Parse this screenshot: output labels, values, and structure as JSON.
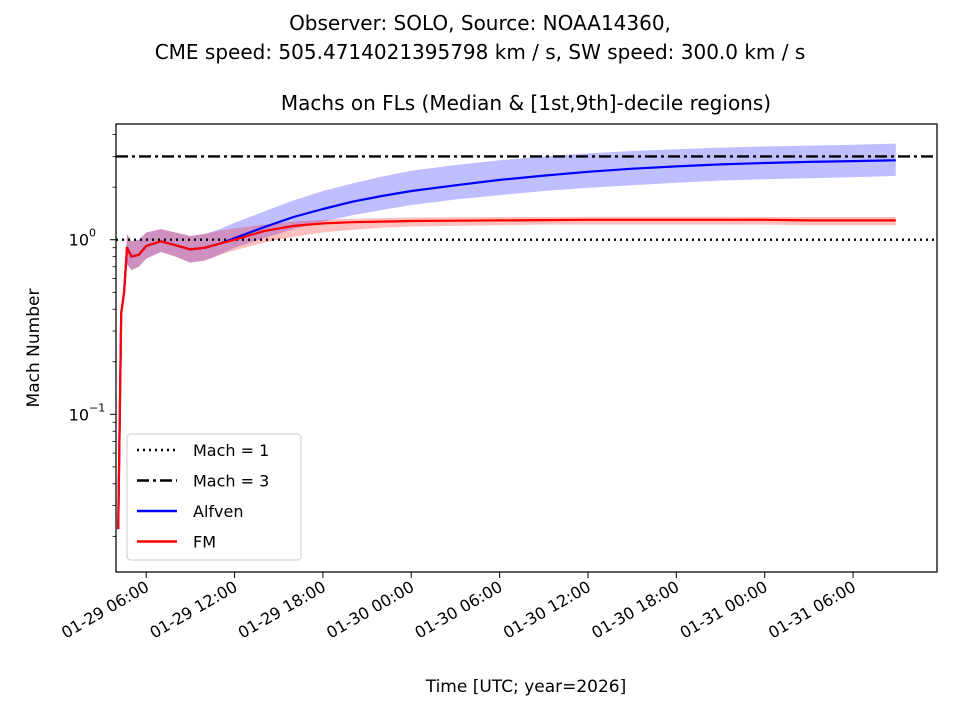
{
  "figure": {
    "suptitle_line1": "Observer: SOLO, Source: NOAA14360,",
    "suptitle_line2": "CME speed: 505.4714021395798 km / s, SW speed: 300.0 km / s"
  },
  "chart_data": {
    "type": "line",
    "title": "Machs on FLs (Median & [1st,9th]-decile regions)",
    "xlabel": "Time [UTC; year=2026]",
    "ylabel": "Mach Number",
    "yscale": "log",
    "x_unit": "hours since 2026-01-29 00:00 UTC",
    "xlim": [
      3.95,
      59.7
    ],
    "ylim": [
      0.0125,
      4.6
    ],
    "xticks": [
      {
        "value": 6,
        "label": "01-29 06:00"
      },
      {
        "value": 12,
        "label": "01-29 12:00"
      },
      {
        "value": 18,
        "label": "01-29 18:00"
      },
      {
        "value": 24,
        "label": "01-30 00:00"
      },
      {
        "value": 30,
        "label": "01-30 06:00"
      },
      {
        "value": 36,
        "label": "01-30 12:00"
      },
      {
        "value": 42,
        "label": "01-30 18:00"
      },
      {
        "value": 48,
        "label": "01-31 00:00"
      },
      {
        "value": 54,
        "label": "01-31 06:00"
      }
    ],
    "yticks": [
      {
        "value": 0.1,
        "label": "10",
        "exp": "−1"
      },
      {
        "value": 1,
        "label": "10",
        "exp": "0"
      }
    ],
    "reference_lines": [
      {
        "name": "Mach = 1",
        "y": 1,
        "color": "#000000",
        "style": "dotted"
      },
      {
        "name": "Mach = 3",
        "y": 3,
        "color": "#000000",
        "style": "dashdot"
      }
    ],
    "series": [
      {
        "name": "Alfven",
        "color": "#0000ff",
        "band_color": "#0000ff",
        "x": [
          4.1,
          4.3,
          4.5,
          4.7,
          5.0,
          5.5,
          6.0,
          7,
          8,
          9,
          10,
          11,
          12,
          14,
          16,
          18,
          20,
          22,
          24,
          27,
          30,
          33,
          36,
          39,
          42,
          45,
          48,
          51,
          54,
          56.9
        ],
        "median": [
          0.022,
          0.38,
          0.5,
          0.9,
          0.8,
          0.82,
          0.92,
          0.98,
          0.93,
          0.88,
          0.9,
          0.95,
          1.02,
          1.18,
          1.35,
          1.5,
          1.65,
          1.78,
          1.9,
          2.05,
          2.2,
          2.33,
          2.45,
          2.55,
          2.63,
          2.7,
          2.75,
          2.79,
          2.82,
          2.85
        ],
        "p10": [
          0.02,
          0.35,
          0.45,
          0.72,
          0.67,
          0.7,
          0.78,
          0.85,
          0.8,
          0.74,
          0.76,
          0.82,
          0.9,
          1.02,
          1.15,
          1.27,
          1.38,
          1.48,
          1.58,
          1.7,
          1.8,
          1.9,
          1.98,
          2.05,
          2.12,
          2.18,
          2.22,
          2.25,
          2.28,
          2.32
        ],
        "p90": [
          0.024,
          0.42,
          0.56,
          1.08,
          0.98,
          1.0,
          1.1,
          1.15,
          1.1,
          1.05,
          1.08,
          1.15,
          1.25,
          1.45,
          1.68,
          1.9,
          2.1,
          2.3,
          2.48,
          2.68,
          2.85,
          3.0,
          3.12,
          3.22,
          3.3,
          3.37,
          3.42,
          3.46,
          3.5,
          3.55
        ]
      },
      {
        "name": "FM",
        "color": "#ff0000",
        "band_color": "#ff0000",
        "x": [
          4.1,
          4.3,
          4.5,
          4.7,
          5.0,
          5.5,
          6.0,
          7,
          8,
          9,
          10,
          11,
          12,
          14,
          16,
          18,
          20,
          22,
          24,
          27,
          30,
          33,
          36,
          39,
          42,
          45,
          48,
          51,
          54,
          56.9
        ],
        "median": [
          0.022,
          0.38,
          0.5,
          0.9,
          0.8,
          0.82,
          0.92,
          0.98,
          0.93,
          0.88,
          0.9,
          0.95,
          1.0,
          1.12,
          1.2,
          1.24,
          1.26,
          1.27,
          1.28,
          1.285,
          1.29,
          1.295,
          1.3,
          1.3,
          1.3,
          1.3,
          1.3,
          1.29,
          1.29,
          1.29
        ],
        "p10": [
          0.02,
          0.35,
          0.45,
          0.72,
          0.67,
          0.7,
          0.78,
          0.85,
          0.8,
          0.74,
          0.76,
          0.82,
          0.87,
          0.96,
          1.04,
          1.1,
          1.14,
          1.17,
          1.19,
          1.2,
          1.21,
          1.22,
          1.22,
          1.22,
          1.22,
          1.22,
          1.22,
          1.21,
          1.21,
          1.21
        ],
        "p90": [
          0.024,
          0.42,
          0.56,
          1.08,
          0.98,
          1.0,
          1.1,
          1.15,
          1.1,
          1.05,
          1.08,
          1.13,
          1.16,
          1.22,
          1.27,
          1.3,
          1.32,
          1.33,
          1.34,
          1.345,
          1.35,
          1.35,
          1.355,
          1.355,
          1.355,
          1.355,
          1.35,
          1.35,
          1.35,
          1.35
        ]
      }
    ],
    "legend": {
      "placement": "lower-left",
      "entries": [
        {
          "label": "Mach = 1",
          "color": "#000000",
          "style": "dotted"
        },
        {
          "label": "Mach = 3",
          "color": "#000000",
          "style": "dashdot"
        },
        {
          "label": "Alfven",
          "color": "#0000ff",
          "style": "solid"
        },
        {
          "label": "FM",
          "color": "#ff0000",
          "style": "solid"
        }
      ]
    },
    "grid": false
  }
}
